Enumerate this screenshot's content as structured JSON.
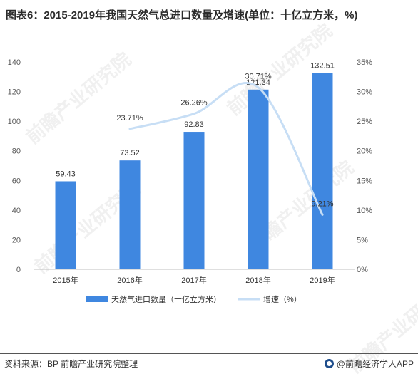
{
  "title": "图表6：2015-2019年我国天然气总进口数量及增速(单位：十亿立方米，%)",
  "footer": {
    "source": "资料来源：BP 前瞻产业研究院整理",
    "brand": "@前瞻经济学人APP"
  },
  "watermark": "前瞻产业研究院",
  "colors": {
    "bar": "#3f87e0",
    "line": "#c7def5",
    "axis": "#bfbfbf"
  },
  "chart_data": {
    "type": "bar",
    "categories": [
      "2015年",
      "2016年",
      "2017年",
      "2018年",
      "2019年"
    ],
    "series": [
      {
        "name": "天然气进口数量（十亿立方米）",
        "type": "bar",
        "axis": "left",
        "values": [
          59.43,
          73.52,
          92.83,
          121.34,
          132.51
        ],
        "labels": [
          "59.43",
          "73.52",
          "92.83",
          "121.34",
          "132.51"
        ]
      },
      {
        "name": "增速（%）",
        "type": "line",
        "axis": "right",
        "values": [
          null,
          23.71,
          26.26,
          30.71,
          9.21
        ],
        "labels": [
          "",
          "23.71%",
          "26.26%",
          "30.71%",
          "9.21%"
        ]
      }
    ],
    "yaxis_left": {
      "ticks": [
        0,
        20,
        40,
        60,
        80,
        100,
        120,
        140
      ],
      "min": 0,
      "max": 140
    },
    "yaxis_right": {
      "ticks": [
        0,
        5,
        10,
        15,
        20,
        25,
        30,
        35
      ],
      "tick_labels": [
        "0%",
        "5%",
        "10%",
        "15%",
        "20%",
        "25%",
        "30%",
        "35%"
      ],
      "min": 0,
      "max": 35
    },
    "legend_position": "bottom",
    "grid": false
  }
}
